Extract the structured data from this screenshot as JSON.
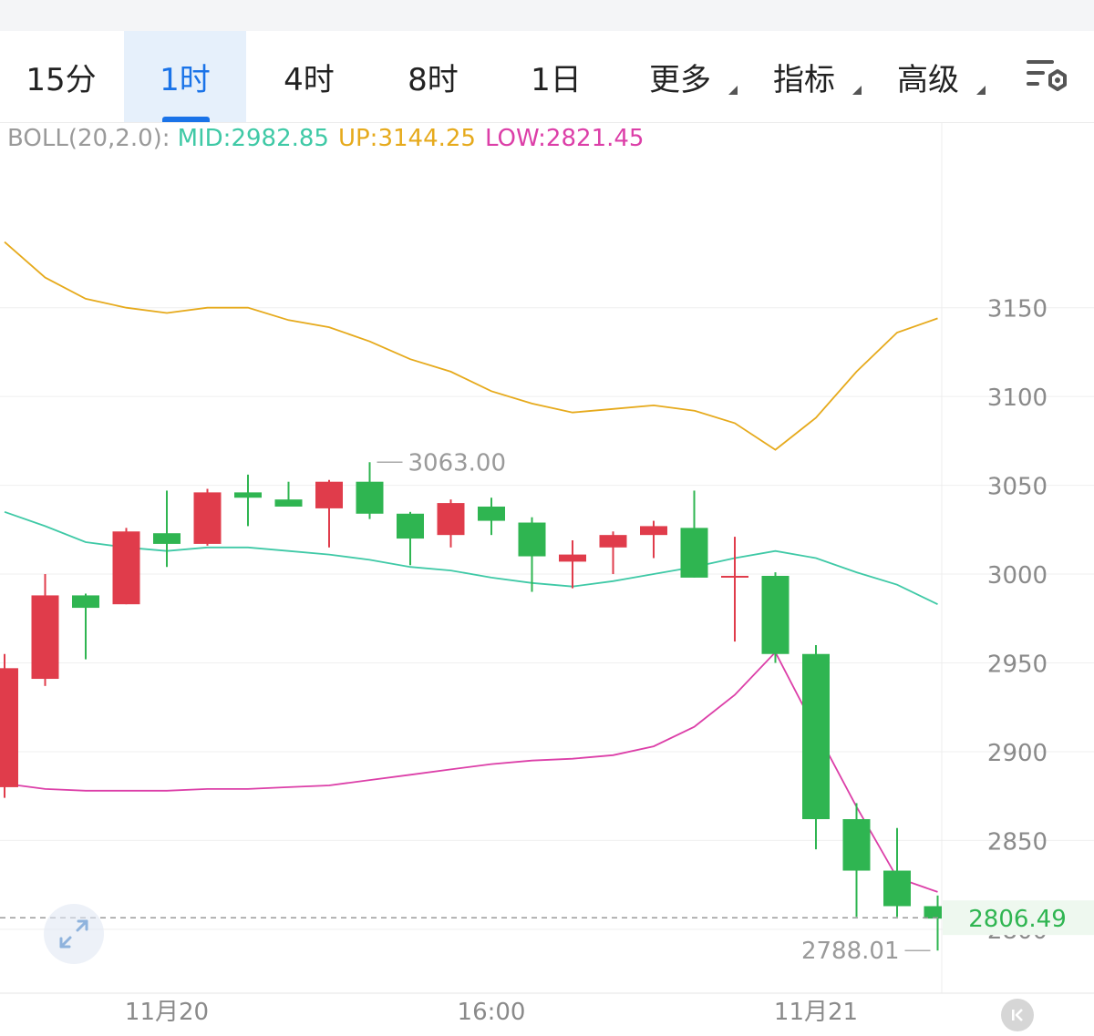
{
  "toolbar": {
    "tabs": [
      {
        "label": "15分",
        "active": false
      },
      {
        "label": "1时",
        "active": true
      },
      {
        "label": "4时",
        "active": false
      },
      {
        "label": "8时",
        "active": false
      },
      {
        "label": "1日",
        "active": false
      },
      {
        "label": "更多",
        "active": false,
        "has_menu": true
      },
      {
        "label": "指标",
        "active": false,
        "has_menu": true
      },
      {
        "label": "高级",
        "active": false,
        "has_menu": true
      }
    ],
    "settings_icon": "chart-settings-icon"
  },
  "indicator": {
    "name": "BOLL(20,2.0):",
    "mid": "MID:2982.85",
    "up": "UP:3144.25",
    "low": "LOW:2821.45"
  },
  "icons": {
    "expand": "expand-arrows-icon",
    "scroll_end": "scroll-to-latest-icon"
  },
  "colors": {
    "up_candle": "#e03c4b",
    "down_candle": "#2fb551",
    "boll_up": "#e6aa1c",
    "boll_mid": "#3fc9a6",
    "boll_low": "#dc3fa8",
    "active_tab": "#1a73e8",
    "price_label": "#2fb551"
  },
  "chart_data": {
    "type": "candlestick",
    "interval": "1时",
    "ylim": [
      2764,
      3254
    ],
    "y_ticks": [
      3150,
      3100,
      3050,
      3000,
      2950,
      2900,
      2850,
      2800
    ],
    "x_labels": [
      {
        "label": "11月20",
        "index": 4
      },
      {
        "label": "16:00",
        "index": 12
      },
      {
        "label": "11月21",
        "index": 20
      }
    ],
    "candles": [
      {
        "open": 2880,
        "high": 2955,
        "low": 2874,
        "close": 2947
      },
      {
        "open": 2941,
        "high": 3000,
        "low": 2937,
        "close": 2988
      },
      {
        "open": 2988,
        "high": 2989,
        "low": 2952,
        "close": 2981
      },
      {
        "open": 2983,
        "high": 3026,
        "low": 2983,
        "close": 3024
      },
      {
        "open": 3023,
        "high": 3047,
        "low": 3004,
        "close": 3017
      },
      {
        "open": 3017,
        "high": 3048,
        "low": 3016,
        "close": 3046
      },
      {
        "open": 3046,
        "high": 3056,
        "low": 3027,
        "close": 3043
      },
      {
        "open": 3042,
        "high": 3052,
        "low": 3039,
        "close": 3038
      },
      {
        "open": 3037,
        "high": 3053,
        "low": 3015,
        "close": 3052
      },
      {
        "open": 3052,
        "high": 3063,
        "low": 3031,
        "close": 3034
      },
      {
        "open": 3034,
        "high": 3035,
        "low": 3005,
        "close": 3020
      },
      {
        "open": 3022,
        "high": 3042,
        "low": 3015,
        "close": 3040
      },
      {
        "open": 3038,
        "high": 3043,
        "low": 3022,
        "close": 3030
      },
      {
        "open": 3029,
        "high": 3032,
        "low": 2990,
        "close": 3010
      },
      {
        "open": 3007,
        "high": 3019,
        "low": 2992,
        "close": 3011
      },
      {
        "open": 3015,
        "high": 3024,
        "low": 3000,
        "close": 3022
      },
      {
        "open": 3022,
        "high": 3030,
        "low": 3009,
        "close": 3027
      },
      {
        "open": 3026,
        "high": 3047,
        "low": 2998,
        "close": 2998
      },
      {
        "open": 2999,
        "high": 3021,
        "low": 2962,
        "close": 2999
      },
      {
        "open": 2999,
        "high": 3001,
        "low": 2950,
        "close": 2955
      },
      {
        "open": 2955,
        "high": 2960,
        "low": 2845,
        "close": 2862
      },
      {
        "open": 2862,
        "high": 2871,
        "low": 2807,
        "close": 2833
      },
      {
        "open": 2833,
        "high": 2857,
        "low": 2807,
        "close": 2813
      },
      {
        "open": 2813,
        "high": 2819,
        "low": 2788,
        "close": 2806
      }
    ],
    "boll": {
      "up": [
        3187,
        3167,
        3155,
        3150,
        3147,
        3150,
        3150,
        3143,
        3139,
        3131,
        3121,
        3114,
        3103,
        3096,
        3091,
        3093,
        3095,
        3092,
        3085,
        3070,
        3088,
        3114,
        3136,
        3144
      ],
      "mid": [
        3035,
        3027,
        3018,
        3015,
        3013,
        3015,
        3015,
        3013,
        3011,
        3008,
        3004,
        3002,
        2998,
        2995,
        2993,
        2996,
        3000,
        3004,
        3009,
        3013,
        3009,
        3001,
        2994,
        2983
      ],
      "low": [
        2882,
        2879,
        2878,
        2878,
        2878,
        2879,
        2879,
        2880,
        2881,
        2884,
        2887,
        2890,
        2893,
        2895,
        2896,
        2898,
        2903,
        2914,
        2932,
        2956,
        2912,
        2869,
        2829,
        2821
      ]
    },
    "marked_high": {
      "value": "3063.00",
      "index": 9
    },
    "marked_low": {
      "value": "2788.01",
      "index": 23
    },
    "last_price": {
      "value": "2806.49",
      "price": 2806.49
    }
  }
}
